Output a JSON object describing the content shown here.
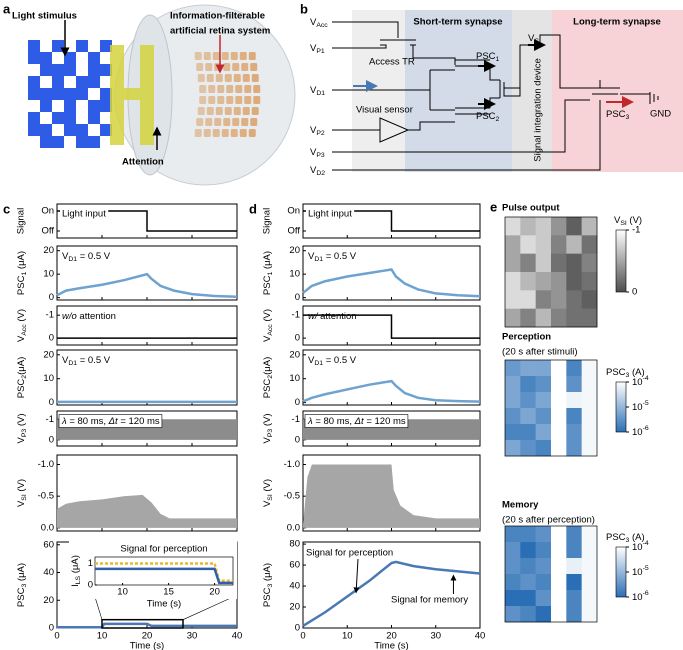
{
  "a": {
    "label": "a",
    "stimulus": "Light  stimulus",
    "system": [
      "Information-filterable",
      "artificial retina system"
    ],
    "attention": "Attention"
  },
  "b": {
    "label": "b",
    "terminals": [
      [
        "V",
        {
          "sub": "Acc"
        }
      ],
      [
        "V",
        {
          "sub": "P1"
        }
      ],
      [
        "V",
        {
          "sub": "D1"
        }
      ],
      [
        "V",
        {
          "sub": "P2"
        }
      ],
      [
        "V",
        {
          "sub": "P3"
        }
      ],
      [
        "V",
        {
          "sub": "D2"
        }
      ]
    ],
    "access_tr": "Access TR",
    "visual_sensor": "Visual sensor",
    "short_term": "Short-term synapse",
    "long_term": "Long-term synapse",
    "psc1": [
      "PSC",
      {
        "sub": "1"
      }
    ],
    "psc2": [
      "PSC",
      {
        "sub": "2"
      }
    ],
    "vsi": [
      "V",
      {
        "sub": "SI"
      }
    ],
    "integration": "Signal integration device",
    "psc3": [
      "PSC",
      {
        "sub": "3"
      }
    ],
    "gnd": "GND"
  },
  "c": {
    "label": "c",
    "xlabel": "Time (s)",
    "xlim": [
      0,
      40
    ],
    "xticks": [
      0,
      10,
      20,
      30,
      40
    ],
    "rows": [
      {
        "ylabel": "Signal",
        "ylim": [
          -0.35,
          1.35
        ],
        "yticks": [
          {
            "value": 1,
            "label": "On"
          },
          {
            "value": 0,
            "label": "Off"
          }
        ],
        "series": [
          {
            "color": "#000000",
            "x": [
              0,
              20,
              20,
              40
            ],
            "values": [
              1,
              1,
              0,
              0
            ]
          }
        ],
        "annotation": {
          "text": "Light input",
          "color": "#c0282d"
        }
      },
      {
        "ylabel": [
          "PSC",
          {
            "sub": "1"
          },
          " (μA)"
        ],
        "ylim": [
          -1,
          22
        ],
        "yticks": [
          0,
          10,
          20
        ],
        "series": [
          {
            "color": "#6ea3d0",
            "x": [
              0,
              2,
              5,
              10,
              15,
              20,
              21,
              23,
              26,
              30,
              35,
              40
            ],
            "values": [
              1,
              3,
              4,
              5.5,
              7.5,
              10,
              8,
              5,
              3,
              1.5,
              0.7,
              0.4
            ]
          }
        ],
        "annotation": {
          "text": [
            "V",
            {
              "sub": "D1"
            },
            " = 0.5 V"
          ],
          "color": "#4a86c0"
        }
      },
      {
        "ylabel": [
          "V",
          {
            "sub": "Acc"
          },
          " (V)"
        ],
        "ylim": [
          0.3,
          -1.4
        ],
        "yticks": [
          -1,
          0
        ],
        "series": [
          {
            "color": "#000000",
            "x": [
              0,
              40
            ],
            "values": [
              0,
              0
            ]
          }
        ],
        "annotation": {
          "text": [
            {
              "i": "w/o"
            },
            " attention"
          ],
          "color": "#4a86c0"
        }
      },
      {
        "ylabel": [
          "PSC",
          {
            "sub": "2"
          },
          "(μA)"
        ],
        "ylim": [
          -1,
          22
        ],
        "yticks": [
          0,
          10,
          20
        ],
        "series": [
          {
            "color": "#6ea3d0",
            "x": [
              0,
              40
            ],
            "values": [
              0.3,
              0.3
            ]
          }
        ],
        "annotation": {
          "text": [
            "V",
            {
              "sub": "D1"
            },
            " = 0.5 V"
          ],
          "color": "#4a86c0"
        }
      },
      {
        "ylabel": [
          "V",
          {
            "sub": "P3"
          },
          " (V)"
        ],
        "ylim": [
          0.3,
          -1.4
        ],
        "yticks": [
          -1,
          0
        ],
        "series": [
          {
            "color": "#8c8c8c",
            "fill": true,
            "x": [
              0,
              40
            ],
            "values": [
              -1,
              -1
            ]
          }
        ],
        "annotation": {
          "text": [
            {
              "i": "λ"
            },
            " = 80 ms, ",
            {
              "i": "Δt"
            },
            " = 120 ms"
          ],
          "color": "#000000"
        }
      },
      {
        "ylabel": [
          "V",
          {
            "sub": "SI"
          },
          " (V)"
        ],
        "ylim": [
          0.05,
          -1.15
        ],
        "yticks": [
          {
            "value": -1,
            "label": "-1.0"
          },
          {
            "value": -0.5,
            "label": "-0.5"
          },
          {
            "value": 0,
            "label": "0.0"
          }
        ],
        "series": [
          {
            "color": "#a6a6a6",
            "fill": true,
            "x": [
              0,
              2,
              5,
              10,
              15,
              19,
              21,
              23,
              25,
              30,
              35,
              40
            ],
            "values": [
              -0.3,
              -0.38,
              -0.42,
              -0.45,
              -0.5,
              -0.52,
              -0.4,
              -0.22,
              -0.15,
              -0.15,
              -0.15,
              -0.15
            ]
          }
        ]
      },
      {
        "ylabel": [
          "PSC",
          {
            "sub": "3"
          },
          " (μA)"
        ],
        "ylim": [
          0,
          62
        ],
        "yticks": [
          0,
          20,
          40,
          60
        ],
        "series": [
          {
            "color": "#4a78b5",
            "x": [
              0,
              10,
              10.5,
              20,
              21,
              40
            ],
            "values": [
              0.5,
              0.5,
              3,
              3,
              1.5,
              1.5
            ]
          }
        ]
      }
    ],
    "inset": {
      "title": "Signal for perception",
      "ylabel": [
        "I",
        {
          "sub": "LS"
        },
        " (μA)"
      ],
      "xlabel": "Time (s)",
      "xlim": [
        7,
        22
      ],
      "xticks": [
        10,
        15,
        20
      ],
      "ylim": [
        0,
        1.3
      ],
      "yticks": [
        0,
        1
      ],
      "box_x": [
        10,
        28
      ],
      "box_y": [
        0,
        6
      ],
      "series": [
        {
          "color": "#e8b92e",
          "dash": true,
          "x": [
            7,
            20,
            20.5,
            22
          ],
          "values": [
            1,
            1,
            0.2,
            0.2
          ]
        },
        {
          "color": "#2f5fa8",
          "x": [
            7,
            20,
            20.5,
            22
          ],
          "values": [
            0.75,
            0.75,
            0.1,
            0.1
          ]
        }
      ]
    }
  },
  "d": {
    "label": "d",
    "xlabel": "Time (s)",
    "xlim": [
      0,
      40
    ],
    "xticks": [
      0,
      10,
      20,
      30,
      40
    ],
    "rows": [
      {
        "ylabel": "Signal",
        "ylim": [
          -0.35,
          1.35
        ],
        "yticks": [
          {
            "value": 1,
            "label": "On"
          },
          {
            "value": 0,
            "label": "Off"
          }
        ],
        "series": [
          {
            "color": "#000000",
            "x": [
              0,
              20,
              20,
              40
            ],
            "values": [
              1,
              1,
              0,
              0
            ]
          }
        ],
        "annotation": {
          "text": "Light input",
          "color": "#c0282d"
        }
      },
      {
        "ylabel": [
          "PSC",
          {
            "sub": "1"
          },
          " (μA)"
        ],
        "ylim": [
          -1,
          22
        ],
        "yticks": [
          0,
          10,
          20
        ],
        "series": [
          {
            "color": "#6ea3d0",
            "x": [
              0,
              2,
              5,
              10,
              15,
              20,
              21,
              23,
              26,
              30,
              35,
              40
            ],
            "values": [
              2,
              5,
              7,
              9,
              10.5,
              12,
              9,
              6,
              3.5,
              1.8,
              1,
              0.6
            ]
          }
        ],
        "annotation": {
          "text": [
            "V",
            {
              "sub": "D1"
            },
            " = 0.5 V"
          ],
          "color": "#4a86c0"
        }
      },
      {
        "ylabel": [
          "V",
          {
            "sub": "Acc"
          },
          " (V)"
        ],
        "ylim": [
          0.3,
          -1.4
        ],
        "yticks": [
          -1,
          0
        ],
        "series": [
          {
            "color": "#000000",
            "x": [
              0,
              20,
              20,
              40
            ],
            "values": [
              -1,
              -1,
              0,
              0
            ]
          }
        ],
        "annotation": {
          "text": [
            {
              "i": "w/"
            },
            " attention"
          ],
          "color": "#000000"
        }
      },
      {
        "ylabel": [
          "PSC",
          {
            "sub": "2"
          },
          "(μA)"
        ],
        "ylim": [
          -1,
          22
        ],
        "yticks": [
          0,
          10,
          20
        ],
        "series": [
          {
            "color": "#6ea3d0",
            "x": [
              0,
              2,
              5,
              10,
              15,
              20,
              21,
              23,
              26,
              30,
              35,
              40
            ],
            "values": [
              0.5,
              2,
              3.5,
              5.5,
              7.5,
              9,
              7,
              4,
              2,
              1,
              0.6,
              0.4
            ]
          }
        ],
        "annotation": {
          "text": [
            "V",
            {
              "sub": "D1"
            },
            " = 0.5 V"
          ],
          "color": "#4a86c0"
        }
      },
      {
        "ylabel": [
          "V",
          {
            "sub": "P3"
          },
          " (V)"
        ],
        "ylim": [
          0.3,
          -1.4
        ],
        "yticks": [
          -1,
          0
        ],
        "series": [
          {
            "color": "#8c8c8c",
            "fill": true,
            "x": [
              0,
              40
            ],
            "values": [
              -1,
              -1
            ]
          }
        ],
        "annotation": {
          "text": [
            {
              "i": "λ"
            },
            " = 80 ms, ",
            {
              "i": "Δt"
            },
            " = 120 ms"
          ],
          "color": "#000000"
        }
      },
      {
        "ylabel": [
          "V",
          {
            "sub": "SI"
          },
          " (V)"
        ],
        "ylim": [
          0.05,
          -1.15
        ],
        "yticks": [
          {
            "value": -1,
            "label": "-1.0"
          },
          {
            "value": -0.5,
            "label": "-0.5"
          },
          {
            "value": 0,
            "label": "0.0"
          }
        ],
        "series": [
          {
            "color": "#a6a6a6",
            "fill": true,
            "x": [
              0,
              1,
              2,
              20,
              20.5,
              22,
              25,
              30,
              35,
              40
            ],
            "values": [
              -0.05,
              -0.8,
              -1,
              -1,
              -0.6,
              -0.35,
              -0.2,
              -0.15,
              -0.15,
              -0.15
            ]
          }
        ]
      },
      {
        "ylabel": [
          "PSC",
          {
            "sub": "3"
          },
          " (μA)"
        ],
        "ylim": [
          0,
          82
        ],
        "yticks": [
          0,
          20,
          40,
          60,
          80
        ],
        "series": [
          {
            "color": "#4a78b5",
            "x": [
              0,
              5,
              10,
              15,
              20,
              21,
              25,
              30,
              35,
              40
            ],
            "values": [
              2,
              15,
              30,
              45,
              62,
              63,
              59,
              56,
              54,
              52
            ]
          }
        ],
        "perception": "Signal for perception",
        "memory": "Signal for memory"
      }
    ]
  },
  "e": {
    "label": "e",
    "maps": [
      {
        "title": "Pulse output",
        "cbar_label": [
          "V",
          {
            "sub": "SI"
          },
          " (V)"
        ],
        "clim": [
          -1,
          0
        ],
        "colors": [
          "#ffffff",
          "#4d4d4d"
        ],
        "cticks": [
          -1,
          0
        ],
        "values": [
          [
            -0.8,
            -0.6,
            -0.7,
            -0.4,
            -0.1,
            -0.6
          ],
          [
            -0.5,
            -0.8,
            -0.7,
            -0.3,
            -0.6,
            -0.2
          ],
          [
            -0.5,
            -0.3,
            -0.7,
            -0.2,
            -0.1,
            -0.3
          ],
          [
            -0.8,
            -0.6,
            -0.5,
            -0.4,
            -0.1,
            -0.2
          ],
          [
            -0.8,
            -0.8,
            -0.3,
            -0.4,
            -0.2,
            -0.1
          ],
          [
            -0.5,
            -0.3,
            -0.6,
            -0.3,
            -0.2,
            -0.2
          ]
        ]
      },
      {
        "title": "Perception",
        "subtitle": "(20 s after stimuli)",
        "cbar_label": [
          "PSC",
          {
            "sub": "3"
          },
          " (A)"
        ],
        "log": true,
        "clim": [
          0.0001,
          1e-06
        ],
        "colors": [
          "#ffffff",
          "#2a6fb5"
        ],
        "cticks": [
          {
            "value": 0.0001,
            "label": [
              "10",
              {
                "sup": "-4"
              }
            ]
          },
          {
            "value": 1e-05,
            "label": [
              "10",
              {
                "sup": "-5"
              }
            ]
          },
          {
            "value": 1e-06,
            "label": [
              "10",
              {
                "sup": "-6"
              }
            ]
          }
        ],
        "values": [
          [
            4e-06,
            6e-06,
            6e-06,
            0.0001,
            2e-06,
            8e-05
          ],
          [
            6e-06,
            2e-06,
            3e-06,
            0.0001,
            3e-06,
            8e-05
          ],
          [
            6e-06,
            3e-06,
            6e-06,
            0.0001,
            7e-05,
            8e-05
          ],
          [
            3e-06,
            6e-06,
            3e-06,
            0.0001,
            2e-06,
            8e-05
          ],
          [
            2e-06,
            2e-06,
            6e-06,
            0.0001,
            3e-06,
            8e-05
          ],
          [
            6e-06,
            3e-06,
            2e-06,
            0.0001,
            3e-06,
            8e-05
          ]
        ]
      },
      {
        "title": "Memory",
        "subtitle": "(20 s after perception)",
        "cbar_label": [
          "PSC",
          {
            "sub": "3"
          },
          " (A)"
        ],
        "log": true,
        "clim": [
          0.0001,
          1e-06
        ],
        "colors": [
          "#ffffff",
          "#2a6fb5"
        ],
        "cticks": [
          {
            "value": 0.0001,
            "label": [
              "10",
              {
                "sup": "-4"
              }
            ]
          },
          {
            "value": 1e-05,
            "label": [
              "10",
              {
                "sup": "-5"
              }
            ]
          },
          {
            "value": 1e-06,
            "label": [
              "10",
              {
                "sup": "-6"
              }
            ]
          }
        ],
        "values": [
          [
            2e-06,
            2e-06,
            3e-06,
            0.0001,
            2e-06,
            8e-05
          ],
          [
            3e-06,
            1e-06,
            2e-06,
            0.0001,
            2e-06,
            8e-05
          ],
          [
            3e-06,
            2e-06,
            3e-06,
            0.0001,
            6e-05,
            8e-05
          ],
          [
            2e-06,
            3e-06,
            2e-06,
            0.0001,
            1e-06,
            8e-05
          ],
          [
            1e-06,
            1e-06,
            3e-06,
            0.0001,
            2e-06,
            8e-05
          ],
          [
            3e-06,
            2e-06,
            1e-06,
            0.0001,
            2e-06,
            8e-05
          ]
        ]
      }
    ]
  }
}
